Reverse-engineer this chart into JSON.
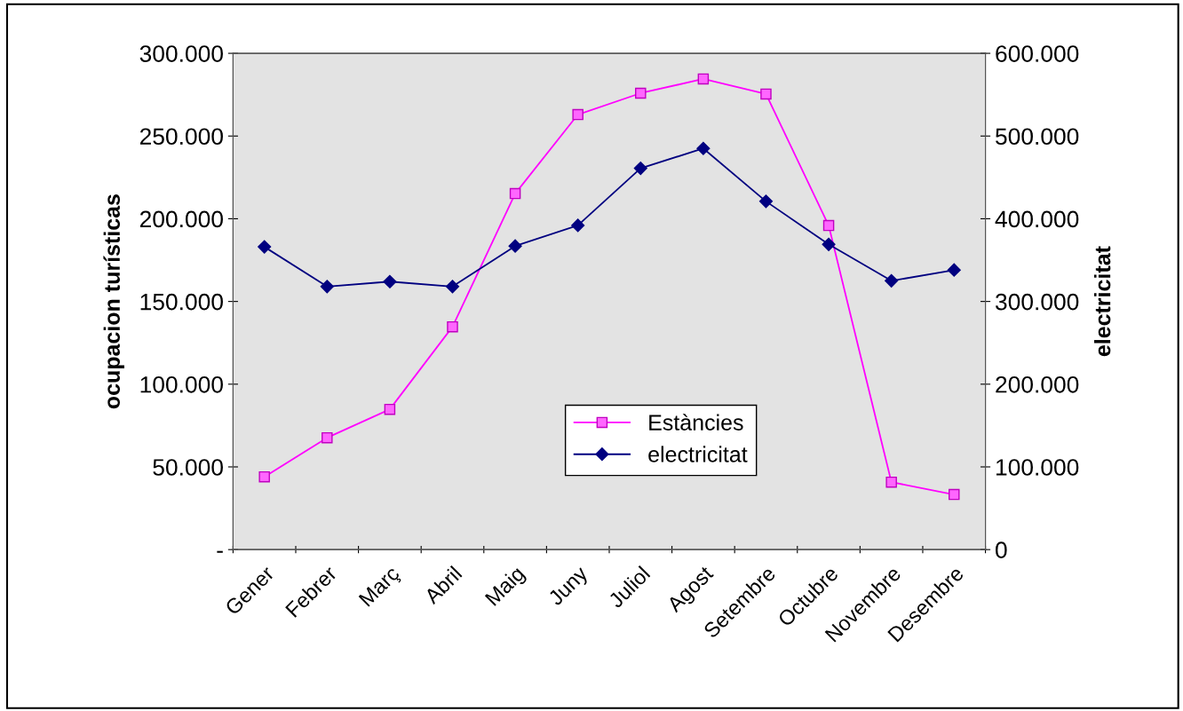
{
  "chart_data": {
    "type": "line",
    "categories": [
      "Gener",
      "Febrer",
      "Març",
      "Abril",
      "Maig",
      "Juny",
      "Juliol",
      "Agost",
      "Setembre",
      "Octubre",
      "Novembre",
      "Desembre"
    ],
    "series": [
      {
        "name": "Estàncies",
        "color": "#ff00ff",
        "marker": "square",
        "values": [
          44000,
          67600,
          84800,
          134700,
          215200,
          263000,
          275900,
          284500,
          275400,
          195900,
          40800,
          33300
        ]
      },
      {
        "name": "electricitat",
        "color": "#000080",
        "marker": "diamond",
        "axis": "y2",
        "values": [
          366000,
          318000,
          324000,
          318000,
          367000,
          392000,
          461000,
          485000,
          421000,
          369000,
          325000,
          338000
        ]
      }
    ],
    "ylabel": "ocupacion turísticas",
    "y2label": "electricitat",
    "ylim": [
      0,
      300000
    ],
    "yticks": [
      {
        "value": 0,
        "label": "-"
      },
      {
        "value": 50000,
        "label": "50.000"
      },
      {
        "value": 100000,
        "label": "100.000"
      },
      {
        "value": 150000,
        "label": "150.000"
      },
      {
        "value": 200000,
        "label": "200.000"
      },
      {
        "value": 250000,
        "label": "250.000"
      },
      {
        "value": 300000,
        "label": "300.000"
      }
    ],
    "y2lim": [
      0,
      600000
    ],
    "y2ticks": [
      0,
      {
        "value": 100000,
        "label": "100.000"
      },
      {
        "value": 200000,
        "label": "200.000"
      },
      {
        "value": 300000,
        "label": "300.000"
      },
      {
        "value": 400000,
        "label": "400.000"
      },
      {
        "value": 500000,
        "label": "500.000"
      },
      {
        "value": 600000,
        "label": "600.000"
      }
    ],
    "grid": false,
    "legend": "bottom",
    "line_style": "solid"
  }
}
